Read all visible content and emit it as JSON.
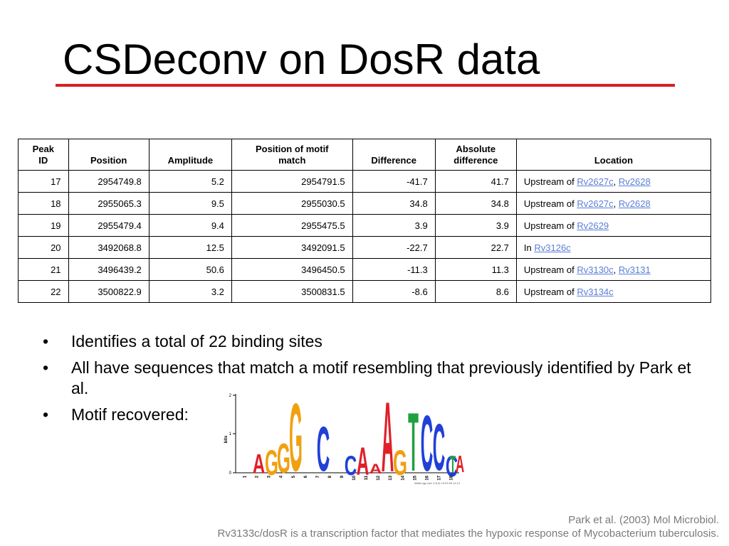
{
  "title": "CSDeconv on DosR data",
  "colors": {
    "title_rule": "#d72020",
    "link": "#5b7fd6",
    "footer": "#7a7a7a"
  },
  "table": {
    "headers": [
      "Peak\nID",
      "Position",
      "Amplitude",
      "Position of motif\nmatch",
      "Difference",
      "Absolute\ndifference",
      "Location"
    ],
    "rows": [
      {
        "peak_id": "17",
        "position": "2954749.8",
        "amplitude": "5.2",
        "motif_position": "2954791.5",
        "difference": "-41.7",
        "abs_difference": "41.7",
        "location_prefix": "Upstream of",
        "genes": [
          "Rv2627c",
          "Rv2628"
        ]
      },
      {
        "peak_id": "18",
        "position": "2955065.3",
        "amplitude": "9.5",
        "motif_position": "2955030.5",
        "difference": "34.8",
        "abs_difference": "34.8",
        "location_prefix": "Upstream of",
        "genes": [
          "Rv2627c",
          "Rv2628"
        ]
      },
      {
        "peak_id": "19",
        "position": "2955479.4",
        "amplitude": "9.4",
        "motif_position": "2955475.5",
        "difference": "3.9",
        "abs_difference": "3.9",
        "location_prefix": "Upstream of",
        "genes": [
          "Rv2629"
        ]
      },
      {
        "peak_id": "20",
        "position": "3492068.8",
        "amplitude": "12.5",
        "motif_position": "3492091.5",
        "difference": "-22.7",
        "abs_difference": "22.7",
        "location_prefix": "In",
        "genes": [
          "Rv3126c"
        ]
      },
      {
        "peak_id": "21",
        "position": "3496439.2",
        "amplitude": "50.6",
        "motif_position": "3496450.5",
        "difference": "-11.3",
        "abs_difference": "11.3",
        "location_prefix": "Upstream of",
        "genes": [
          "Rv3130c",
          "Rv3131"
        ]
      },
      {
        "peak_id": "22",
        "position": "3500822.9",
        "amplitude": "3.2",
        "motif_position": "3500831.5",
        "difference": "-8.6",
        "abs_difference": "8.6",
        "location_prefix": "Upstream of",
        "genes": [
          "Rv3134c"
        ]
      }
    ]
  },
  "bullets": [
    "Identifies a total of 22 binding sites",
    "All have sequences that match a motif resembling that previously identified by Park et al.",
    "Motif recovered:"
  ],
  "bullet_glyph": "•",
  "motif_logo": {
    "ylabel": "bits",
    "yticks": [
      "2",
      "1",
      "0"
    ],
    "positions": [
      "1",
      "2",
      "3",
      "4",
      "5",
      "6",
      "7",
      "8",
      "9",
      "10",
      "11",
      "12",
      "13",
      "14",
      "15",
      "16",
      "17",
      "18"
    ],
    "consensus": [
      "A",
      "G",
      "G",
      "G",
      "C",
      "C",
      "A",
      "A",
      "A",
      "G",
      "T",
      "C",
      "C",
      "C",
      "T",
      "A"
    ],
    "caption": "WebLogo (rev 2.8.2) 19.03.09 11:14",
    "letter_colors": {
      "A": "#e0202a",
      "C": "#2040d8",
      "G": "#f0a010",
      "T": "#20a040"
    }
  },
  "footer": {
    "line1": "Park et al. (2003) Mol Microbiol.",
    "line2": "Rv3133c/dosR is a transcription factor that mediates the hypoxic response of Mycobacterium tuberculosis."
  }
}
